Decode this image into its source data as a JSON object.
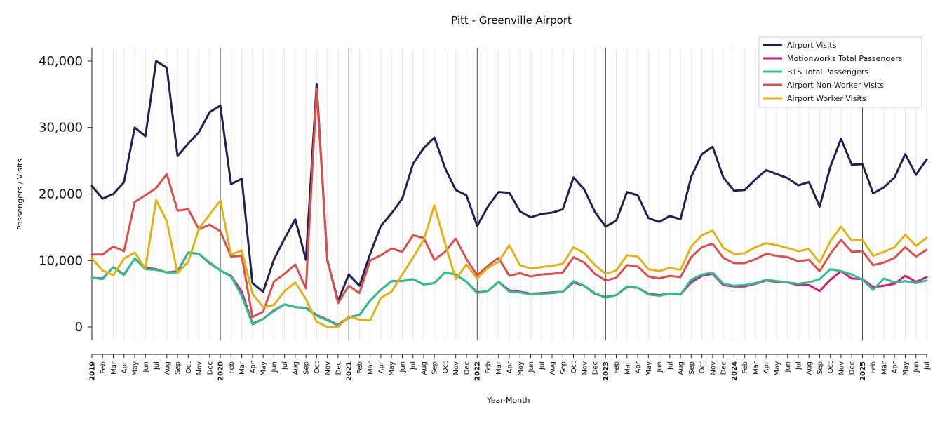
{
  "chart_data": {
    "type": "line",
    "title": "Pitt - Greenville Airport",
    "xlabel": "Year-Month",
    "ylabel": "Passengers / Visits",
    "ylim": [
      -2000,
      42000
    ],
    "yticks": [
      0,
      10000,
      20000,
      30000,
      40000
    ],
    "ytick_labels": [
      "0",
      "10,000",
      "20,000",
      "30,000",
      "40,000"
    ],
    "grid": "vertical minor lines monthly, major lines at each January",
    "legend_position": "top-right",
    "x": [
      "2019",
      "Feb",
      "Mar",
      "Apr",
      "May",
      "Jun",
      "Jul",
      "Aug",
      "Sep",
      "Oct",
      "Nov",
      "Dec",
      "2020",
      "Feb",
      "Mar",
      "Apr",
      "May",
      "Jun",
      "Jul",
      "Aug",
      "Sep",
      "Oct",
      "Nov",
      "Dec",
      "2021",
      "Feb",
      "Mar",
      "Apr",
      "May",
      "Jun",
      "Jul",
      "Aug",
      "Sep",
      "Oct",
      "Nov",
      "Dec",
      "2022",
      "Feb",
      "Mar",
      "Apr",
      "May",
      "Jun",
      "Jul",
      "Aug",
      "Sep",
      "Oct",
      "Nov",
      "Dec",
      "2023",
      "Feb",
      "Mar",
      "Apr",
      "May",
      "Jun",
      "Jul",
      "Aug",
      "Sep",
      "Oct",
      "Nov",
      "Dec",
      "2024",
      "Feb",
      "Mar",
      "Apr",
      "May",
      "Jun",
      "Jul",
      "Aug",
      "Sep",
      "Oct",
      "Nov",
      "Dec",
      "2025",
      "Feb",
      "Mar",
      "Apr",
      "May",
      "Jun",
      "Jul"
    ],
    "year_labels": [
      "2019",
      "2020",
      "2021",
      "2022",
      "2023",
      "2024",
      "2025"
    ],
    "series": [
      {
        "name": "Airport Visits",
        "color": "#1f2150",
        "values": [
          21200,
          19300,
          20000,
          21800,
          30000,
          28700,
          40000,
          39000,
          25700,
          27600,
          29300,
          32300,
          33300,
          21500,
          22300,
          6600,
          5300,
          10100,
          13300,
          16200,
          10100,
          36500,
          10000,
          3900,
          7900,
          6200,
          11000,
          15200,
          17100,
          19300,
          24500,
          26900,
          28500,
          23900,
          20600,
          19800,
          15200,
          18100,
          20300,
          20200,
          17400,
          16500,
          17000,
          17200,
          17700,
          22500,
          20700,
          17300,
          15100,
          16000,
          20300,
          19800,
          16400,
          15800,
          16700,
          16200,
          22600,
          26000,
          27100,
          22500,
          20500,
          20600,
          22200,
          23600,
          23000,
          22400,
          21300,
          21800,
          18100,
          24100,
          28300,
          24400,
          24500,
          20100,
          21000,
          22500,
          26000,
          22900,
          25200
        ]
      },
      {
        "name": "Motionworks Total Passengers",
        "color": "#d21a82",
        "values": [
          7400,
          7300,
          9000,
          7900,
          10300,
          8900,
          8700,
          8200,
          8400,
          11200,
          11000,
          9600,
          8500,
          7700,
          5300,
          500,
          1200,
          2500,
          3400,
          3000,
          2900,
          1800,
          1100,
          300,
          1500,
          1800,
          4000,
          5600,
          6900,
          6900,
          7200,
          6400,
          6600,
          8200,
          7900,
          6800,
          5200,
          5400,
          6800,
          5500,
          5300,
          5000,
          5100,
          5200,
          5300,
          6700,
          6200,
          5000,
          4500,
          4800,
          6000,
          5900,
          5000,
          4800,
          5000,
          4900,
          6700,
          7700,
          8000,
          6300,
          6100,
          6100,
          6500,
          7000,
          6800,
          6700,
          6300,
          6300,
          5400,
          7100,
          8400,
          7300,
          7200,
          6000,
          6200,
          6500,
          7700,
          6800,
          7500
        ]
      },
      {
        "name": "BTS Total Passengers",
        "color": "#2cc08f",
        "values": [
          7400,
          7200,
          9000,
          7800,
          10300,
          8700,
          8600,
          8200,
          8200,
          11200,
          11000,
          9700,
          8500,
          7600,
          4700,
          400,
          1200,
          2400,
          3400,
          3000,
          2800,
          1700,
          1000,
          200,
          1400,
          1800,
          4000,
          5600,
          6900,
          6900,
          7200,
          6400,
          6600,
          8200,
          7900,
          6800,
          5100,
          5400,
          6800,
          5300,
          5200,
          4900,
          5000,
          5100,
          5300,
          6900,
          6200,
          5100,
          4400,
          4800,
          6100,
          5900,
          4900,
          4700,
          5000,
          4900,
          7100,
          7900,
          8200,
          6500,
          6200,
          6300,
          6600,
          7100,
          6900,
          6700,
          6500,
          6700,
          7200,
          8700,
          8400,
          7900,
          7100,
          5600,
          7300,
          6700,
          6900,
          6600,
          7000
        ]
      },
      {
        "name": "Airport Non-Worker Visits",
        "color": "#d94f4c",
        "values": [
          10900,
          10900,
          12100,
          11400,
          18800,
          19800,
          20900,
          23000,
          17500,
          17700,
          14700,
          15400,
          14400,
          10600,
          10700,
          1500,
          2300,
          6800,
          8000,
          9400,
          5800,
          35800,
          10100,
          3600,
          6200,
          5100,
          10000,
          10800,
          11800,
          11300,
          13800,
          13400,
          10100,
          11300,
          13300,
          10200,
          7800,
          9200,
          10400,
          7700,
          8100,
          7600,
          7900,
          8000,
          8200,
          10500,
          9700,
          8000,
          7000,
          7400,
          9300,
          9100,
          7600,
          7300,
          7700,
          7500,
          10500,
          12000,
          12500,
          10400,
          9600,
          9600,
          10200,
          11000,
          10700,
          10500,
          9900,
          10100,
          8400,
          11000,
          13100,
          11300,
          11400,
          9300,
          9700,
          10400,
          12000,
          10600,
          11600
        ]
      },
      {
        "name": "Airport Worker Visits",
        "color": "#e1b215",
        "values": [
          10300,
          8500,
          7800,
          10300,
          11200,
          8800,
          19100,
          15900,
          8100,
          9800,
          14800,
          16900,
          19000,
          10900,
          11500,
          5000,
          3000,
          3300,
          5400,
          6700,
          4200,
          800,
          0,
          0,
          1600,
          1100,
          1000,
          4400,
          5300,
          7900,
          10400,
          13100,
          18300,
          12600,
          7200,
          9400,
          7300,
          8900,
          9800,
          12300,
          9300,
          8800,
          9000,
          9200,
          9500,
          12000,
          11100,
          9300,
          8000,
          8500,
          10800,
          10600,
          8700,
          8400,
          8900,
          8600,
          12100,
          13800,
          14500,
          11900,
          11000,
          11100,
          12000,
          12600,
          12300,
          11900,
          11400,
          11700,
          9700,
          12900,
          15100,
          13000,
          13100,
          10700,
          11300,
          12000,
          13900,
          12200,
          13400
        ]
      }
    ]
  }
}
